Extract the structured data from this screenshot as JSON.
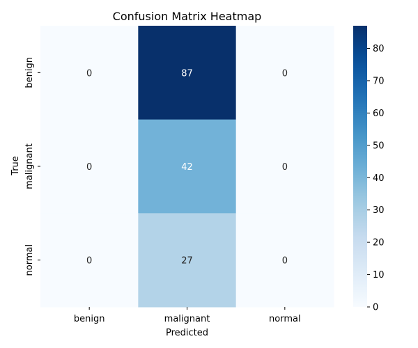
{
  "chart_data": {
    "type": "heatmap",
    "title": "Confusion Matrix Heatmap",
    "xlabel": "Predicted",
    "ylabel": "True",
    "x_categories": [
      "benign",
      "malignant",
      "normal"
    ],
    "y_categories": [
      "benign",
      "malignant",
      "normal"
    ],
    "values": [
      [
        0,
        87,
        0
      ],
      [
        0,
        42,
        0
      ],
      [
        0,
        27,
        0
      ]
    ],
    "colormap": "Blues",
    "color_range": [
      0,
      87
    ],
    "colorbar_ticks": [
      "0",
      "10",
      "20",
      "30",
      "40",
      "50",
      "60",
      "70",
      "80"
    ],
    "annotations": true
  }
}
